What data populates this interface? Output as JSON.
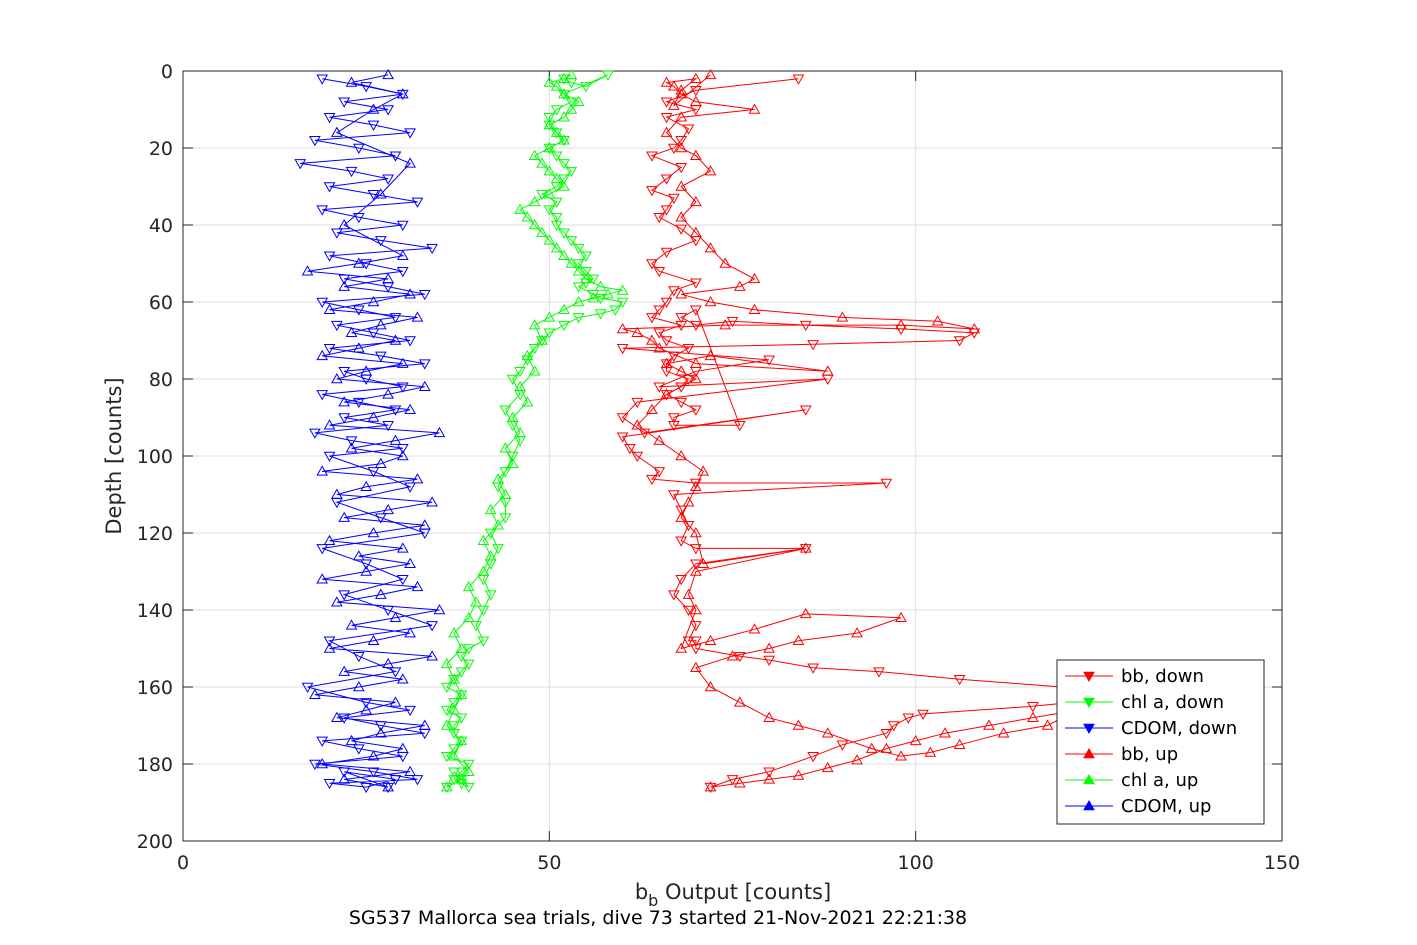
{
  "chart_data": {
    "type": "scatter",
    "xlabel_base": "b",
    "xlabel_sub": "b",
    "xlabel_rest": " Output [counts]",
    "ylabel": "Depth [counts]",
    "caption": "SG537 Mallorca sea trials, dive 73 started 21-Nov-2021 22:21:38",
    "xlim": [
      0,
      150
    ],
    "ylim": [
      0,
      200
    ],
    "y_reversed": true,
    "grid": true,
    "legend_position": "bottom-right",
    "x_ticks": [
      "0",
      "50",
      "100",
      "150"
    ],
    "y_ticks": [
      "0",
      "20",
      "40",
      "60",
      "80",
      "100",
      "120",
      "140",
      "160",
      "180",
      "200"
    ],
    "series": [
      {
        "name": "bb, down",
        "color": "#ff0000",
        "marker": "triangle-down",
        "x": [
          84,
          70,
          66,
          70,
          66,
          69,
          68,
          67,
          64,
          68,
          66,
          64,
          67,
          66,
          65,
          68,
          70,
          66,
          64,
          65,
          70,
          67,
          66,
          65,
          64,
          68,
          65,
          66,
          69,
          67,
          66,
          66,
          69,
          68,
          66,
          68,
          70,
          67,
          67,
          76,
          70,
          68,
          70,
          75,
          85,
          98,
          108,
          106,
          86,
          60,
          80,
          70,
          65,
          88,
          62,
          60,
          63,
          85,
          60,
          61,
          62,
          65,
          64,
          70,
          96,
          67,
          68,
          69,
          68,
          70,
          85,
          70,
          68,
          67,
          69,
          70,
          69,
          70,
          70,
          76,
          80,
          86,
          95,
          106,
          120,
          132,
          116,
          101,
          99,
          97,
          96,
          90,
          86,
          80,
          75,
          72
        ],
        "y": [
          2,
          5,
          8,
          10,
          12,
          15,
          18,
          20,
          22,
          25,
          28,
          31,
          33,
          36,
          38,
          41,
          44,
          47,
          50,
          52,
          55,
          57,
          60,
          62,
          64,
          66,
          68,
          70,
          72,
          74,
          76,
          78,
          80,
          82,
          84,
          86,
          88,
          90,
          92,
          92,
          62,
          64,
          66,
          65,
          66,
          67,
          68,
          70,
          71,
          72,
          75,
          78,
          82,
          80,
          86,
          90,
          94,
          88,
          95,
          98,
          100,
          104,
          106,
          107,
          107,
          110,
          114,
          118,
          122,
          124,
          124,
          128,
          132,
          136,
          140,
          144,
          148,
          148,
          150,
          152,
          153,
          155,
          156,
          158,
          160,
          162,
          165,
          167,
          168,
          170,
          172,
          175,
          178,
          182,
          184,
          186
        ]
      },
      {
        "name": "chl a, down",
        "color": "#00ff00",
        "marker": "triangle-down",
        "x": [
          52,
          53,
          55,
          58,
          52,
          53,
          51,
          50,
          50,
          51,
          52,
          50,
          51,
          52,
          53,
          52,
          51,
          49,
          51,
          50,
          51,
          51,
          52,
          53,
          54,
          55,
          54,
          55,
          56,
          55,
          54,
          56,
          57,
          60,
          59,
          57,
          54,
          52,
          50,
          49,
          48,
          47,
          46,
          45,
          46,
          44,
          45,
          46,
          45,
          44,
          43,
          44,
          44,
          42,
          43,
          42,
          41,
          42,
          41,
          40,
          41,
          39,
          38,
          39,
          38,
          37,
          36,
          38,
          37,
          36,
          38,
          37,
          37,
          38,
          37,
          36,
          39,
          38,
          37,
          38,
          39,
          38,
          37,
          36
        ],
        "y": [
          2,
          3,
          4,
          1,
          6,
          8,
          10,
          12,
          14,
          16,
          18,
          20,
          22,
          24,
          26,
          28,
          30,
          32,
          34,
          36,
          38,
          40,
          42,
          44,
          46,
          48,
          50,
          52,
          54,
          55,
          56,
          58,
          59,
          60,
          62,
          63,
          64,
          66,
          68,
          70,
          72,
          75,
          78,
          80,
          84,
          88,
          92,
          96,
          100,
          104,
          108,
          112,
          116,
          120,
          124,
          128,
          132,
          136,
          140,
          144,
          148,
          150,
          152,
          154,
          156,
          158,
          160,
          162,
          164,
          166,
          168,
          170,
          172,
          174,
          176,
          178,
          180,
          182,
          184,
          185,
          186,
          184,
          182,
          186
        ]
      },
      {
        "name": "CDOM, down",
        "color": "#0000ff",
        "marker": "triangle-down",
        "x": [
          19,
          25,
          30,
          22,
          28,
          20,
          26,
          31,
          18,
          24,
          29,
          16,
          23,
          28,
          20,
          26,
          32,
          19,
          24,
          30,
          21,
          27,
          34,
          20,
          25,
          30,
          22,
          28,
          33,
          19,
          24,
          29,
          21,
          26,
          31,
          20,
          27,
          33,
          22,
          25,
          30,
          19,
          24,
          29,
          22,
          28,
          18,
          23,
          30,
          20,
          26,
          31,
          21,
          27,
          33,
          19,
          25,
          30,
          22,
          28,
          34,
          20,
          24,
          29,
          17,
          25,
          31,
          22,
          27,
          33,
          19,
          24,
          30,
          18,
          26,
          32,
          20,
          25,
          29,
          22,
          28
        ],
        "y": [
          2,
          4,
          6,
          8,
          10,
          12,
          14,
          16,
          18,
          20,
          22,
          24,
          26,
          28,
          30,
          32,
          34,
          36,
          38,
          40,
          42,
          44,
          46,
          48,
          50,
          52,
          54,
          56,
          58,
          60,
          62,
          64,
          66,
          68,
          70,
          72,
          74,
          76,
          78,
          80,
          82,
          84,
          86,
          88,
          90,
          92,
          94,
          96,
          98,
          100,
          104,
          108,
          112,
          116,
          120,
          124,
          128,
          132,
          136,
          140,
          144,
          148,
          152,
          156,
          160,
          164,
          166,
          168,
          170,
          172,
          174,
          176,
          178,
          180,
          182,
          184,
          185,
          186,
          184,
          182,
          186
        ]
      },
      {
        "name": "bb, up",
        "color": "#ff0000",
        "marker": "triangle-up",
        "x": [
          72,
          76,
          80,
          84,
          88,
          92,
          96,
          100,
          104,
          110,
          116,
          122,
          118,
          112,
          106,
          102,
          98,
          94,
          88,
          84,
          80,
          76,
          72,
          70,
          75,
          80,
          84,
          92,
          98,
          85,
          78,
          72,
          68,
          70,
          69,
          70,
          85,
          71,
          70,
          68,
          69,
          70,
          71,
          68,
          65,
          62,
          64,
          66,
          70,
          68,
          66,
          72,
          88,
          70,
          65,
          64,
          62,
          60,
          74,
          98,
          108,
          103,
          90,
          78,
          72,
          68,
          76,
          78,
          74,
          72,
          70,
          68,
          70,
          68,
          72,
          70,
          68,
          66,
          68,
          78,
          70,
          68,
          67,
          66,
          70,
          68,
          67,
          72
        ],
        "y": [
          186,
          185,
          184,
          183,
          181,
          179,
          176,
          174,
          172,
          170,
          168,
          166,
          170,
          172,
          175,
          177,
          178,
          176,
          172,
          170,
          168,
          164,
          160,
          155,
          152,
          150,
          148,
          146,
          142,
          141,
          145,
          148,
          150,
          140,
          136,
          130,
          124,
          128,
          120,
          116,
          112,
          108,
          104,
          100,
          96,
          92,
          88,
          84,
          80,
          78,
          76,
          74,
          78,
          76,
          72,
          70,
          68,
          67,
          66,
          66,
          67,
          65,
          64,
          62,
          60,
          58,
          56,
          54,
          50,
          46,
          42,
          38,
          34,
          30,
          26,
          22,
          20,
          16,
          12,
          10,
          8,
          6,
          4,
          3,
          2,
          5,
          9,
          1
        ]
      },
      {
        "name": "chl a, up",
        "color": "#00ff00",
        "marker": "triangle-up",
        "x": [
          36,
          38,
          39,
          37,
          38,
          36,
          37,
          38,
          37,
          36,
          38,
          37,
          39,
          40,
          39,
          41,
          42,
          41,
          43,
          42,
          44,
          43,
          45,
          44,
          46,
          45,
          47,
          46,
          48,
          47,
          49,
          48,
          50,
          52,
          54,
          56,
          58,
          60,
          57,
          55,
          54,
          53,
          52,
          51,
          50,
          49,
          48,
          47,
          46,
          48,
          50,
          52,
          51,
          50,
          49,
          48,
          50,
          52,
          51,
          50,
          52,
          53,
          54,
          52,
          51,
          50,
          52,
          53
        ],
        "y": [
          186,
          184,
          182,
          178,
          174,
          170,
          166,
          162,
          158,
          154,
          150,
          146,
          142,
          138,
          134,
          130,
          126,
          122,
          118,
          114,
          110,
          106,
          102,
          98,
          94,
          90,
          86,
          82,
          78,
          74,
          70,
          66,
          64,
          62,
          60,
          59,
          58,
          57,
          56,
          54,
          52,
          50,
          48,
          46,
          44,
          42,
          40,
          38,
          36,
          34,
          32,
          30,
          28,
          26,
          24,
          22,
          20,
          18,
          16,
          14,
          12,
          10,
          8,
          6,
          4,
          3,
          2,
          1
        ]
      },
      {
        "name": "CDOM, up",
        "color": "#0000ff",
        "marker": "triangle-up",
        "x": [
          28,
          22,
          31,
          19,
          26,
          30,
          23,
          27,
          33,
          21,
          25,
          29,
          18,
          24,
          30,
          22,
          28,
          34,
          20,
          26,
          31,
          23,
          29,
          35,
          21,
          27,
          32,
          19,
          25,
          31,
          24,
          30,
          20,
          26,
          33,
          22,
          28,
          34,
          21,
          25,
          32,
          19,
          27,
          30,
          23,
          29,
          35,
          20,
          26,
          31,
          22,
          28,
          33,
          21,
          25,
          30,
          19,
          24,
          29,
          23,
          27,
          32,
          20,
          26,
          31,
          22,
          28,
          17,
          24,
          30,
          22,
          27,
          31,
          21,
          26,
          30,
          23,
          28
        ],
        "y": [
          186,
          184,
          182,
          180,
          178,
          176,
          174,
          172,
          170,
          168,
          166,
          164,
          162,
          160,
          158,
          156,
          154,
          152,
          150,
          148,
          146,
          144,
          142,
          140,
          138,
          136,
          134,
          132,
          130,
          128,
          126,
          124,
          122,
          120,
          118,
          116,
          114,
          112,
          110,
          108,
          106,
          104,
          102,
          100,
          98,
          96,
          94,
          92,
          90,
          88,
          86,
          84,
          82,
          80,
          78,
          76,
          74,
          72,
          70,
          68,
          66,
          64,
          62,
          60,
          58,
          56,
          54,
          52,
          50,
          48,
          40,
          32,
          24,
          16,
          10,
          6,
          3,
          1
        ]
      }
    ]
  }
}
